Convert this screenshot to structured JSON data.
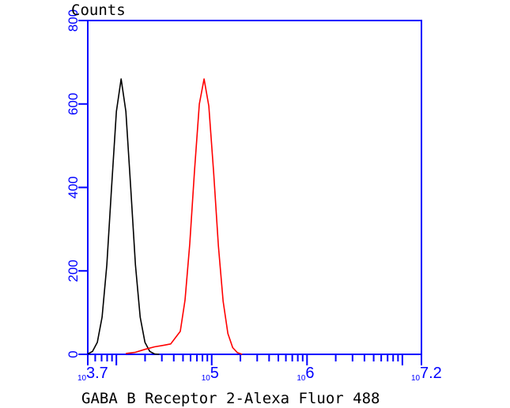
{
  "chart_data": {
    "type": "line",
    "title": "",
    "ylabel": "Counts",
    "xlabel": "GABA B Receptor 2-Alexa Fluor 488",
    "x_scale": "log10",
    "xlim_exponent": [
      3.7,
      7.2
    ],
    "ylim": [
      0,
      800
    ],
    "y_ticks": [
      "0",
      "200",
      "400",
      "600",
      "800"
    ],
    "x_tick_labels": [
      {
        "base": "10",
        "exp": "3.7",
        "value": 3.7
      },
      {
        "base": "10",
        "exp": "5",
        "value": 5
      },
      {
        "base": "10",
        "exp": "6",
        "value": 6
      },
      {
        "base": "10",
        "exp": "7.2",
        "value": 7.2
      }
    ],
    "grid": false,
    "axis_color": "#0000ff",
    "series": [
      {
        "color": "#000000",
        "x_exponent": [
          3.7,
          3.75,
          3.8,
          3.85,
          3.9,
          3.95,
          4.0,
          4.05,
          4.1,
          4.15,
          4.2,
          4.25,
          4.3,
          4.35,
          4.4,
          4.45
        ],
        "y": [
          1,
          7,
          29,
          89,
          214,
          400,
          582,
          660,
          582,
          400,
          214,
          89,
          29,
          7,
          1,
          0
        ]
      },
      {
        "color": "#ff0000",
        "x_exponent": [
          4.1,
          4.2,
          4.3,
          4.4,
          4.5,
          4.57,
          4.62,
          4.67,
          4.72,
          4.77,
          4.82,
          4.87,
          4.92,
          4.97,
          5.02,
          5.07,
          5.12,
          5.17,
          5.22,
          5.27,
          5.32
        ],
        "y": [
          2,
          5,
          12,
          18,
          22,
          25,
          40,
          55,
          130,
          265,
          440,
          600,
          660,
          595,
          436,
          260,
          127,
          50,
          16,
          4,
          0
        ]
      }
    ]
  }
}
